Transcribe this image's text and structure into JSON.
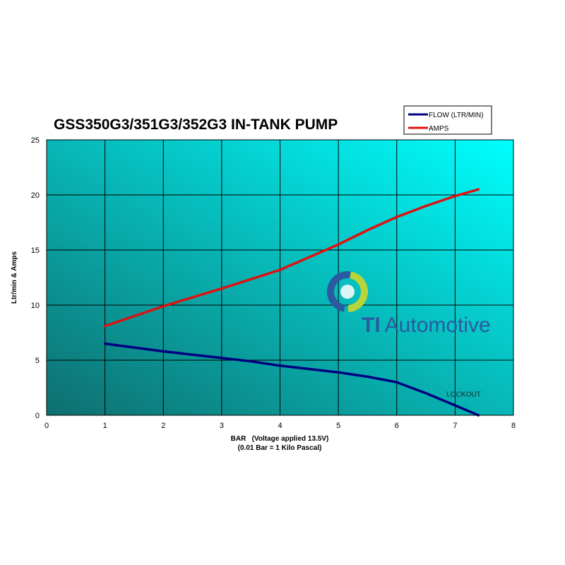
{
  "chart_data": {
    "type": "line",
    "title": "GSS350G3/351G3/352G3 IN-TANK PUMP",
    "xlabel": "BAR   (Voltage applied 13.5V)",
    "xlabel_sub": "(0.01 Bar = 1 Kilo Pascal)",
    "ylabel": "Ltr/min & Amps",
    "xlim": [
      0,
      8
    ],
    "ylim": [
      0,
      25
    ],
    "x_ticks": [
      "0",
      "1",
      "2",
      "3",
      "4",
      "5",
      "6",
      "7",
      "8"
    ],
    "y_ticks": [
      "0",
      "5",
      "10",
      "15",
      "20",
      "25"
    ],
    "grid": true,
    "legend_position": "top-right",
    "series": [
      {
        "name": "FLOW (LTR/MIN)",
        "color": "#000080",
        "x": [
          1,
          2,
          3,
          3.5,
          4,
          5,
          5.5,
          6,
          6.5,
          7,
          7.4
        ],
        "y": [
          6.5,
          5.8,
          5.2,
          4.9,
          4.5,
          3.9,
          3.5,
          3.0,
          2.0,
          0.9,
          0
        ]
      },
      {
        "name": "AMPS",
        "color": "#e01010",
        "x": [
          1,
          2,
          3,
          4,
          5,
          5.5,
          6,
          6.5,
          7,
          7.4
        ],
        "y": [
          8.1,
          9.9,
          11.5,
          13.2,
          15.5,
          16.8,
          18.0,
          19.0,
          19.9,
          20.5
        ]
      }
    ],
    "annotations": [
      {
        "text": "LOCKOUT",
        "x": 7.0,
        "y": 1.3
      }
    ]
  },
  "logo": {
    "text_bold": "TI",
    "text_rest": "Automotive",
    "color_primary": "#2a5aa0",
    "color_accent": "#b8d43a"
  },
  "colors": {
    "plot_gradient_start": "#0f6e6e",
    "plot_gradient_end": "#00ffff",
    "gridline": "#000000"
  }
}
